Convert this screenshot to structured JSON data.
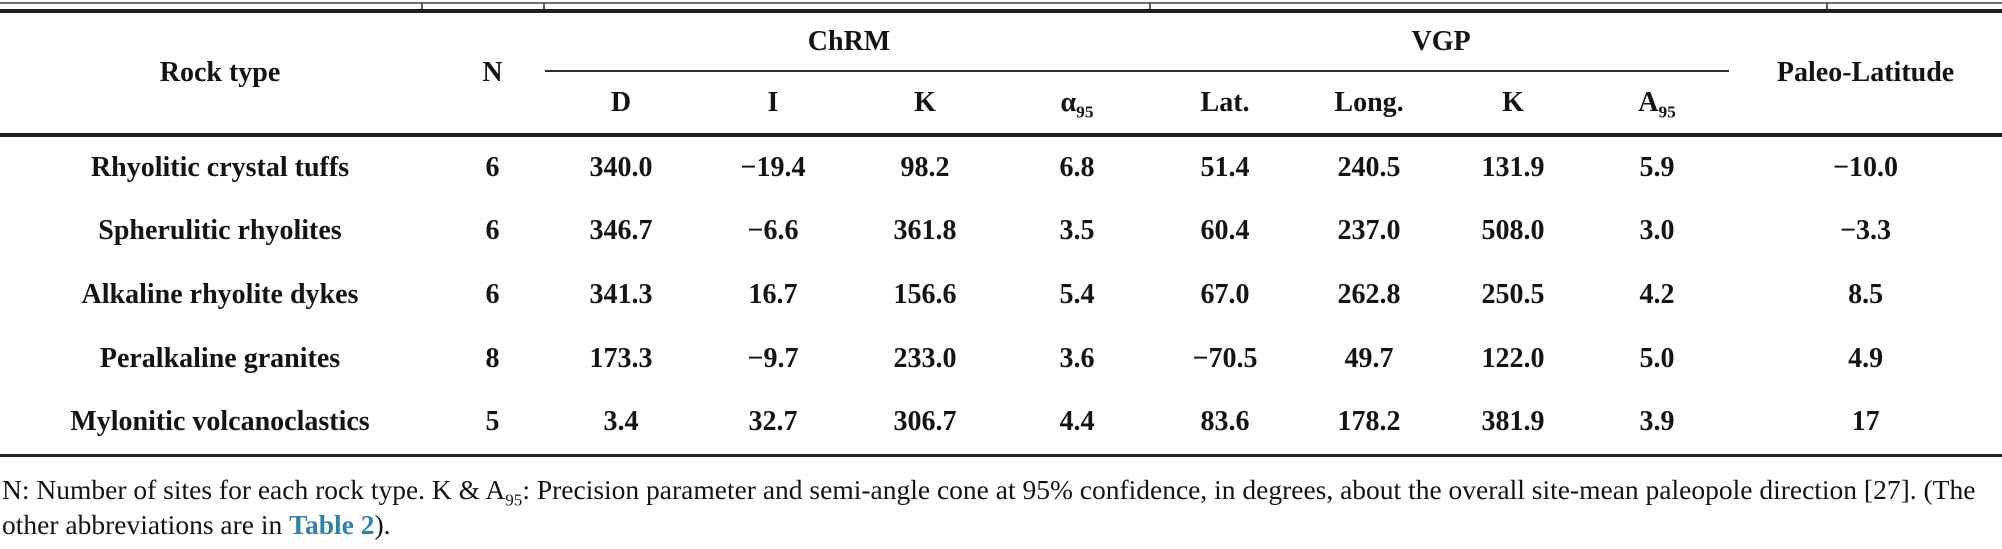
{
  "table": {
    "header": {
      "rock_type": "Rock type",
      "n": "N",
      "chrm_group": "ChRM",
      "vgp_group": "VGP",
      "paleo_latitude": "Paleo-Latitude",
      "sub_columns": [
        {
          "base": "D",
          "sub": ""
        },
        {
          "base": "I",
          "sub": ""
        },
        {
          "base": "K",
          "sub": ""
        },
        {
          "base": "α",
          "sub": "95"
        },
        {
          "base": "Lat.",
          "sub": ""
        },
        {
          "base": "Long.",
          "sub": ""
        },
        {
          "base": "K",
          "sub": ""
        },
        {
          "base": "A",
          "sub": "95"
        }
      ]
    },
    "rows": [
      {
        "rock_type": "Rhyolitic crystal tuffs",
        "n": "6",
        "values": [
          "340.0",
          "−19.4",
          "98.2",
          "6.8",
          "51.4",
          "240.5",
          "131.9",
          "5.9",
          "−10.0"
        ]
      },
      {
        "rock_type": "Spherulitic rhyolites",
        "n": "6",
        "values": [
          "346.7",
          "−6.6",
          "361.8",
          "3.5",
          "60.4",
          "237.0",
          "508.0",
          "3.0",
          "−3.3"
        ]
      },
      {
        "rock_type": "Alkaline rhyolite dykes",
        "n": "6",
        "values": [
          "341.3",
          "16.7",
          "156.6",
          "5.4",
          "67.0",
          "262.8",
          "250.5",
          "4.2",
          "8.5"
        ]
      },
      {
        "rock_type": "Peralkaline granites",
        "n": "8",
        "values": [
          "173.3",
          "−9.7",
          "233.0",
          "3.6",
          "−70.5",
          "49.7",
          "122.0",
          "5.0",
          "4.9"
        ]
      },
      {
        "rock_type": "Mylonitic volcanoclastics",
        "n": "5",
        "values": [
          "3.4",
          "32.7",
          "306.7",
          "4.4",
          "83.6",
          "178.2",
          "381.9",
          "3.9",
          "17"
        ]
      }
    ]
  },
  "footnote": {
    "part1": "N: Number of sites for each rock type. K & A",
    "sub": "95",
    "part2": ": Precision parameter and semi-angle cone at 95% confidence, in degrees, about the overall site-mean paleopole direction [27]. (The other abbreviations are in ",
    "link": "Table 2",
    "part3": ")."
  },
  "colors": {
    "rule_dark": "#1f1f1f",
    "rule_thin": "#6f6f6f",
    "link_blue": "#3182a4",
    "text": "#141414"
  }
}
